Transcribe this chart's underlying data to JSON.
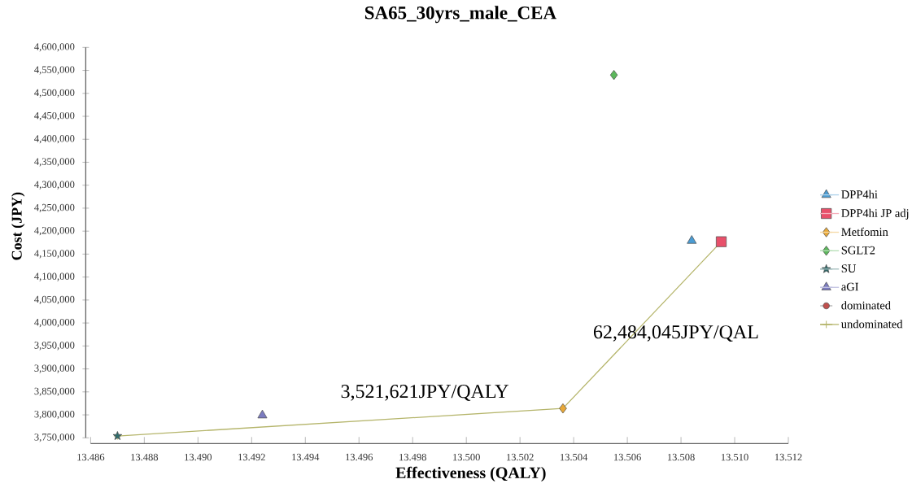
{
  "chart_data": {
    "type": "scatter",
    "title": "SA65_30yrs_male_CEA",
    "xlabel": "Effectiveness (QALY)",
    "ylabel": "Cost (JPY)",
    "xlim": [
      13.486,
      13.512
    ],
    "xticks": [
      {
        "value": 13.486,
        "label": "13.486"
      },
      {
        "value": 13.488,
        "label": "13.488"
      },
      {
        "value": 13.49,
        "label": "13.490"
      },
      {
        "value": 13.492,
        "label": "13.492"
      },
      {
        "value": 13.494,
        "label": "13.494"
      },
      {
        "value": 13.496,
        "label": "13.496"
      },
      {
        "value": 13.498,
        "label": "13.498"
      },
      {
        "value": 13.5,
        "label": "13.500"
      },
      {
        "value": 13.502,
        "label": "13.502"
      },
      {
        "value": 13.504,
        "label": "13.504"
      },
      {
        "value": 13.506,
        "label": "13.506"
      },
      {
        "value": 13.508,
        "label": "13.508"
      },
      {
        "value": 13.51,
        "label": "13.510"
      },
      {
        "value": 13.512,
        "label": "13.512"
      }
    ],
    "ylim": [
      3750000,
      4600000
    ],
    "yticks": [
      {
        "value": 3750000,
        "label": "3,750,000"
      },
      {
        "value": 3800000,
        "label": "3,800,000"
      },
      {
        "value": 3850000,
        "label": "3,850,000"
      },
      {
        "value": 3900000,
        "label": "3,900,000"
      },
      {
        "value": 3950000,
        "label": "3,950,000"
      },
      {
        "value": 4000000,
        "label": "4,000,000"
      },
      {
        "value": 4050000,
        "label": "4,050,000"
      },
      {
        "value": 4100000,
        "label": "4,100,000"
      },
      {
        "value": 4150000,
        "label": "4,150,000"
      },
      {
        "value": 4200000,
        "label": "4,200,000"
      },
      {
        "value": 4250000,
        "label": "4,250,000"
      },
      {
        "value": 4300000,
        "label": "4,300,000"
      },
      {
        "value": 4350000,
        "label": "4,350,000"
      },
      {
        "value": 4400000,
        "label": "4,400,000"
      },
      {
        "value": 4450000,
        "label": "4,450,000"
      },
      {
        "value": 4500000,
        "label": "4,500,000"
      },
      {
        "value": 4550000,
        "label": "4,550,000"
      },
      {
        "value": 4600000,
        "label": "4,600,000"
      }
    ],
    "legend": "right",
    "series": [
      {
        "name": "DPP4hi",
        "color": "#4b9cd3",
        "marker": "triangle",
        "x": [
          13.5084
        ],
        "values": [
          4179000
        ]
      },
      {
        "name": "DPP4hi JP adj",
        "color": "#e8506a",
        "marker": "square",
        "x": [
          13.5095
        ],
        "values": [
          4177000
        ]
      },
      {
        "name": "Metfomin",
        "color": "#e8a838",
        "marker": "diamond",
        "x": [
          13.5036
        ],
        "values": [
          3814000
        ]
      },
      {
        "name": "SGLT2",
        "color": "#5cb85c",
        "marker": "diamond",
        "x": [
          13.5055
        ],
        "values": [
          4540000
        ]
      },
      {
        "name": "SU",
        "color": "#2f6b6b",
        "marker": "star",
        "x": [
          13.487
        ],
        "values": [
          3754000
        ]
      },
      {
        "name": "aGI",
        "color": "#7b7bc0",
        "marker": "triangle",
        "x": [
          13.4924
        ],
        "values": [
          3799000
        ]
      },
      {
        "name": "dominated",
        "color": "#c0504d",
        "marker": "circle"
      },
      {
        "name": "undominated",
        "type": "line",
        "color": "#b5b56b",
        "marker": "cross",
        "x": [
          13.487,
          13.5036,
          13.5095
        ],
        "values": [
          3754000,
          3814000,
          4177000
        ]
      }
    ],
    "annotations": [
      "3,521,621JPY/QALY",
      "62,484,045JPY/QAL"
    ]
  }
}
